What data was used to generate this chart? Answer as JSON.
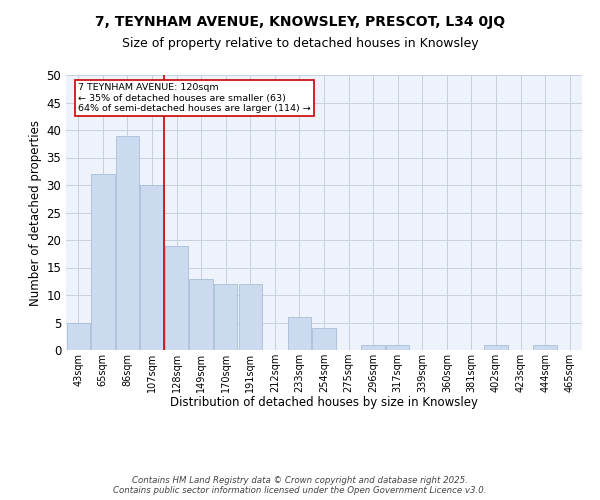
{
  "title_line1": "7, TEYNHAM AVENUE, KNOWSLEY, PRESCOT, L34 0JQ",
  "title_line2": "Size of property relative to detached houses in Knowsley",
  "xlabel": "Distribution of detached houses by size in Knowsley",
  "ylabel": "Number of detached properties",
  "bar_labels": [
    "43sqm",
    "65sqm",
    "86sqm",
    "107sqm",
    "128sqm",
    "149sqm",
    "170sqm",
    "191sqm",
    "212sqm",
    "233sqm",
    "254sqm",
    "275sqm",
    "296sqm",
    "317sqm",
    "339sqm",
    "360sqm",
    "381sqm",
    "402sqm",
    "423sqm",
    "444sqm",
    "465sqm"
  ],
  "bar_values": [
    5,
    32,
    39,
    30,
    19,
    13,
    12,
    12,
    0,
    6,
    4,
    0,
    1,
    1,
    0,
    0,
    0,
    1,
    0,
    1,
    0
  ],
  "bar_color": "#ccdaf0",
  "bar_edge_color": "#a8bfd8",
  "vline_color": "#cc0000",
  "annotation_text": "7 TEYNHAM AVENUE: 120sqm\n← 35% of detached houses are smaller (63)\n64% of semi-detached houses are larger (114) →",
  "annotation_box_color": "#ffffff",
  "annotation_box_edge": "#cc0000",
  "ylim": [
    0,
    50
  ],
  "yticks": [
    0,
    5,
    10,
    15,
    20,
    25,
    30,
    35,
    40,
    45,
    50
  ],
  "background_color": "#eef2fa",
  "footer_text": "Contains HM Land Registry data © Crown copyright and database right 2025.\nContains public sector information licensed under the Open Government Licence v3.0.",
  "title_fontsize": 10,
  "subtitle_fontsize": 9,
  "vline_bin_index": 4
}
